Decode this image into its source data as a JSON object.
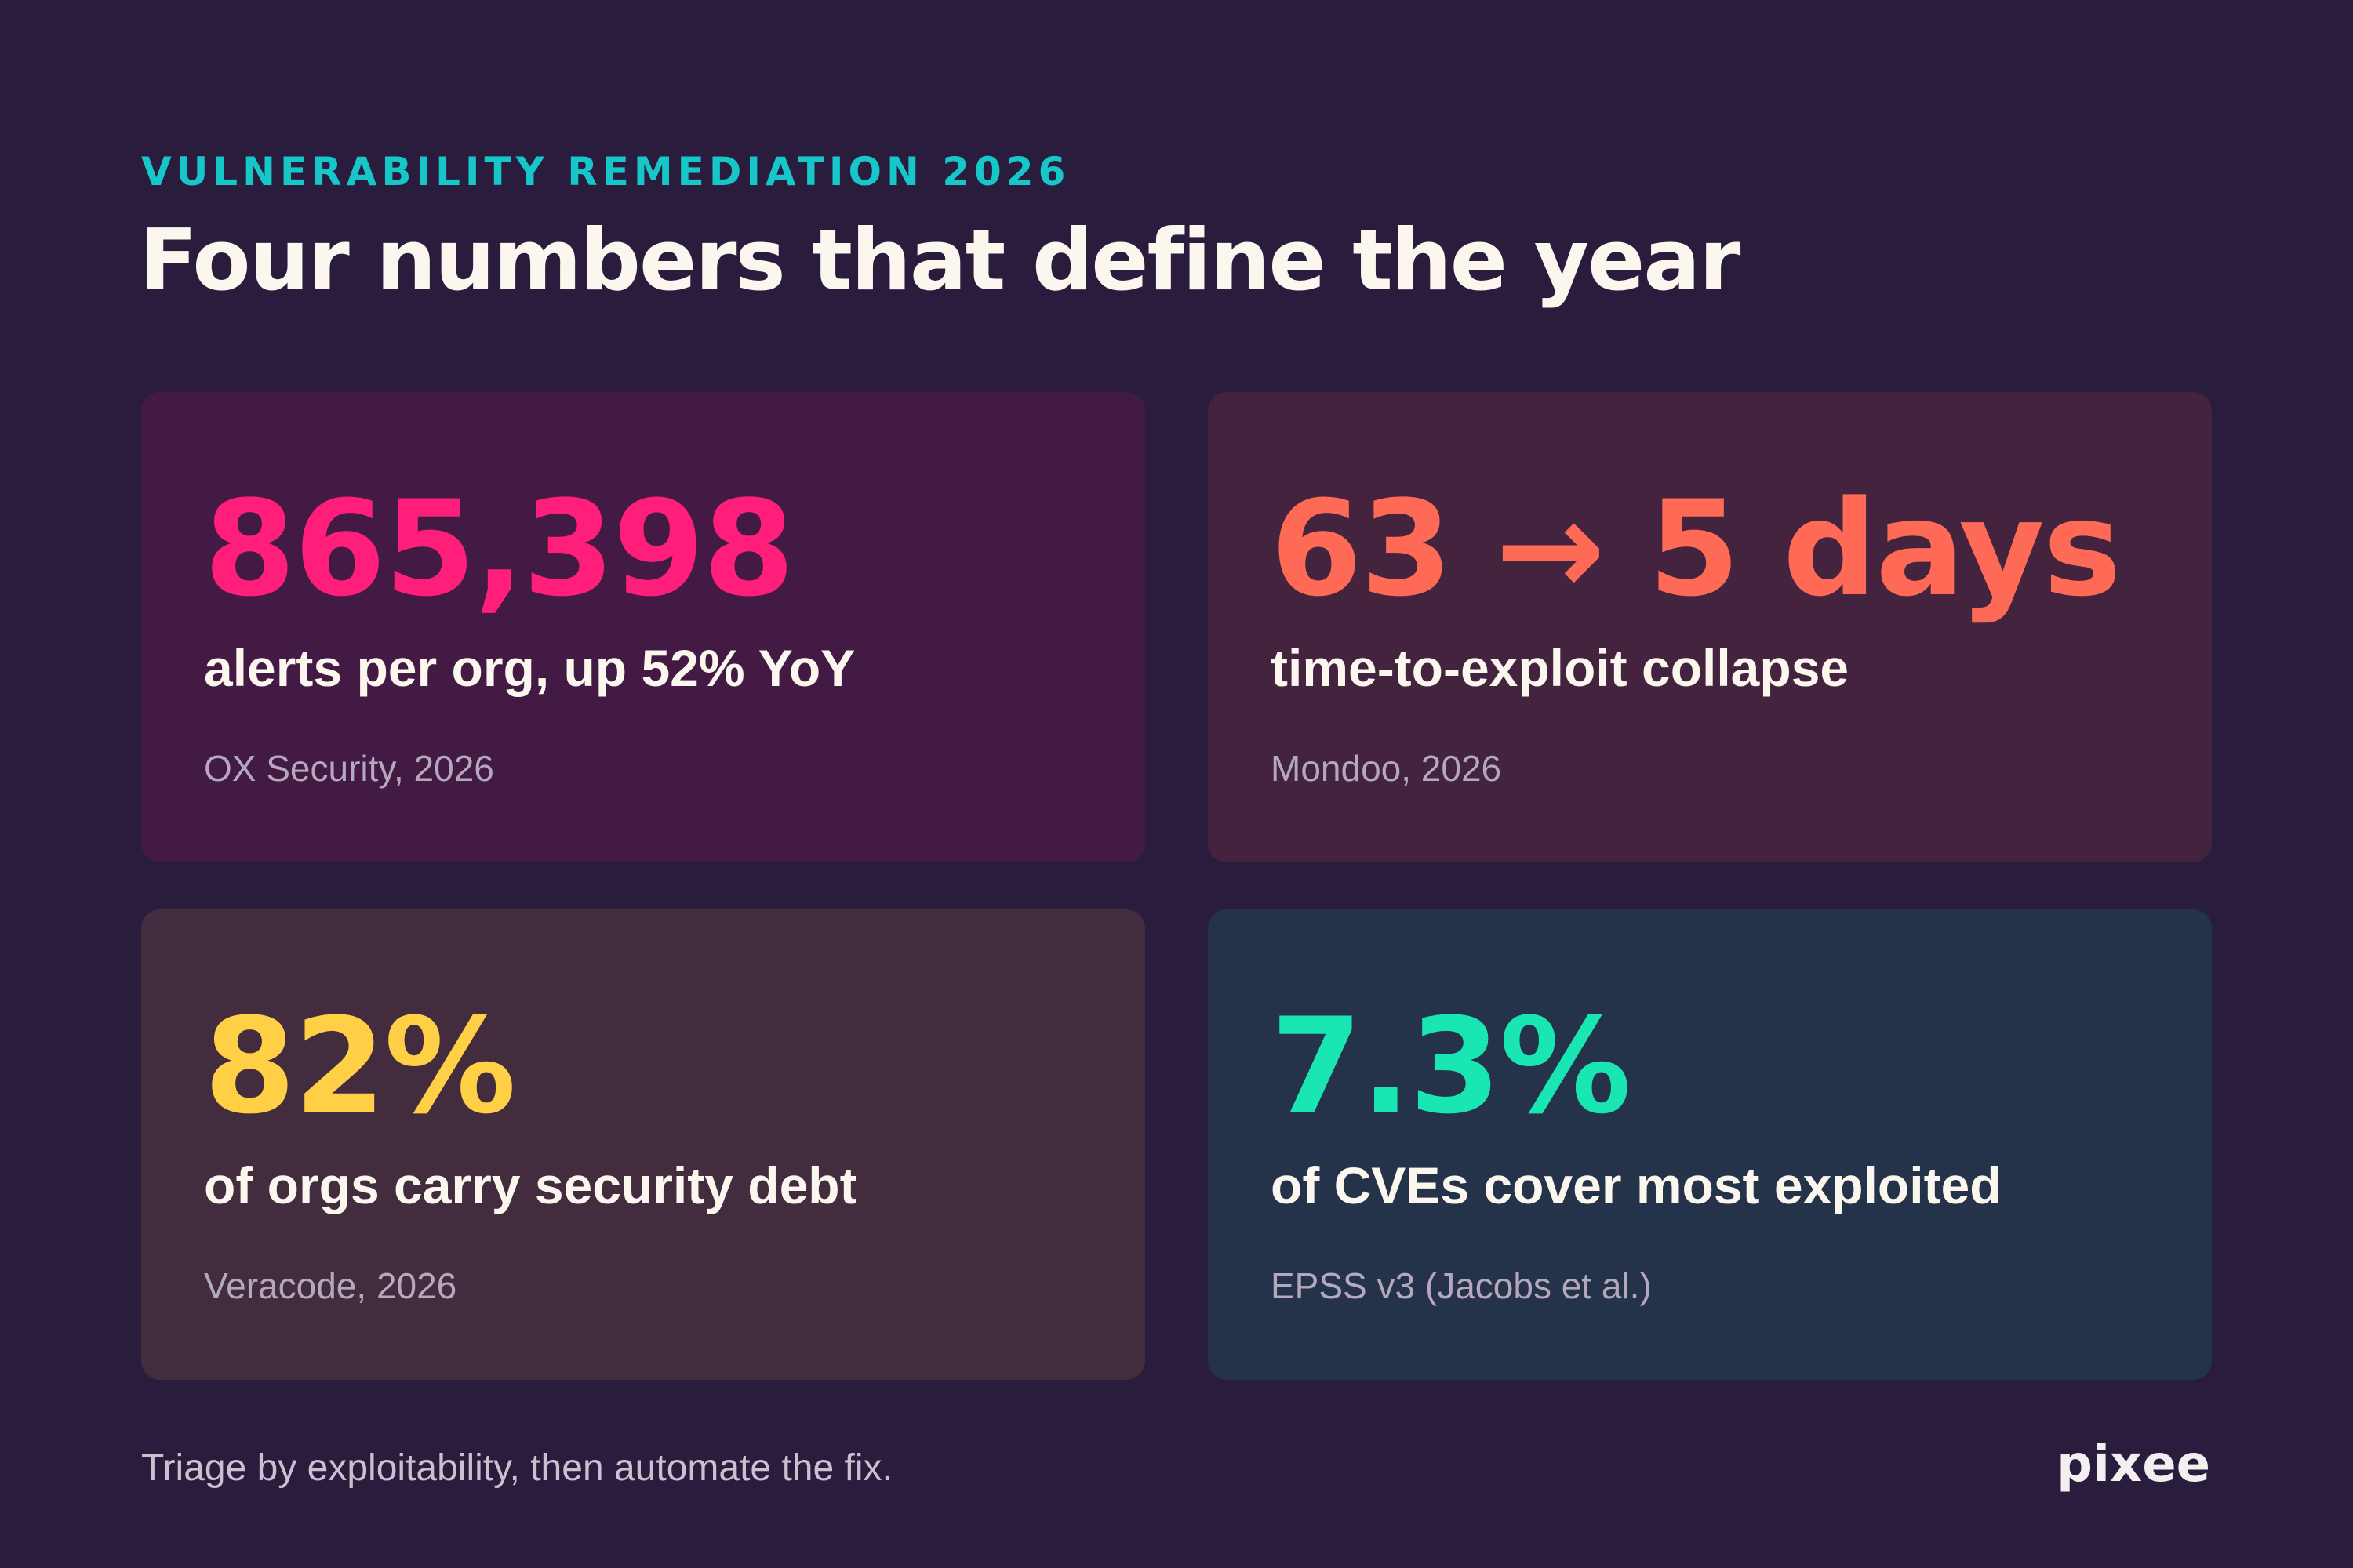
{
  "header": {
    "eyebrow": "VULNERABILITY REMEDIATION 2026",
    "title": "Four numbers that define the year"
  },
  "cards": [
    {
      "stat": "865,398",
      "description": "alerts per org, up 52% YoY",
      "source": "OX Security, 2026",
      "accent_color": "#ff1f7a",
      "background_color": "#431a43"
    },
    {
      "stat": "63 → 5 days",
      "description": "time-to-exploit collapse",
      "source": "Mondoo, 2026",
      "accent_color": "#ff6a56",
      "background_color": "#43233e"
    },
    {
      "stat": "82%",
      "description": "of orgs carry security debt",
      "source": "Veracode, 2026",
      "accent_color": "#ffcf45",
      "background_color": "#432c3e"
    },
    {
      "stat": "7.3%",
      "description": "of CVEs cover most exploited",
      "source": "EPSS v3 (Jacobs et al.)",
      "accent_color": "#19e6b3",
      "background_color": "#24324a"
    }
  ],
  "footer": {
    "tagline": "Triage by exploitability, then automate the fix.",
    "brand": "pixee"
  },
  "colors": {
    "page_background": "#291c3d",
    "eyebrow": "#16c6c9",
    "title": "#fbf6ee"
  }
}
